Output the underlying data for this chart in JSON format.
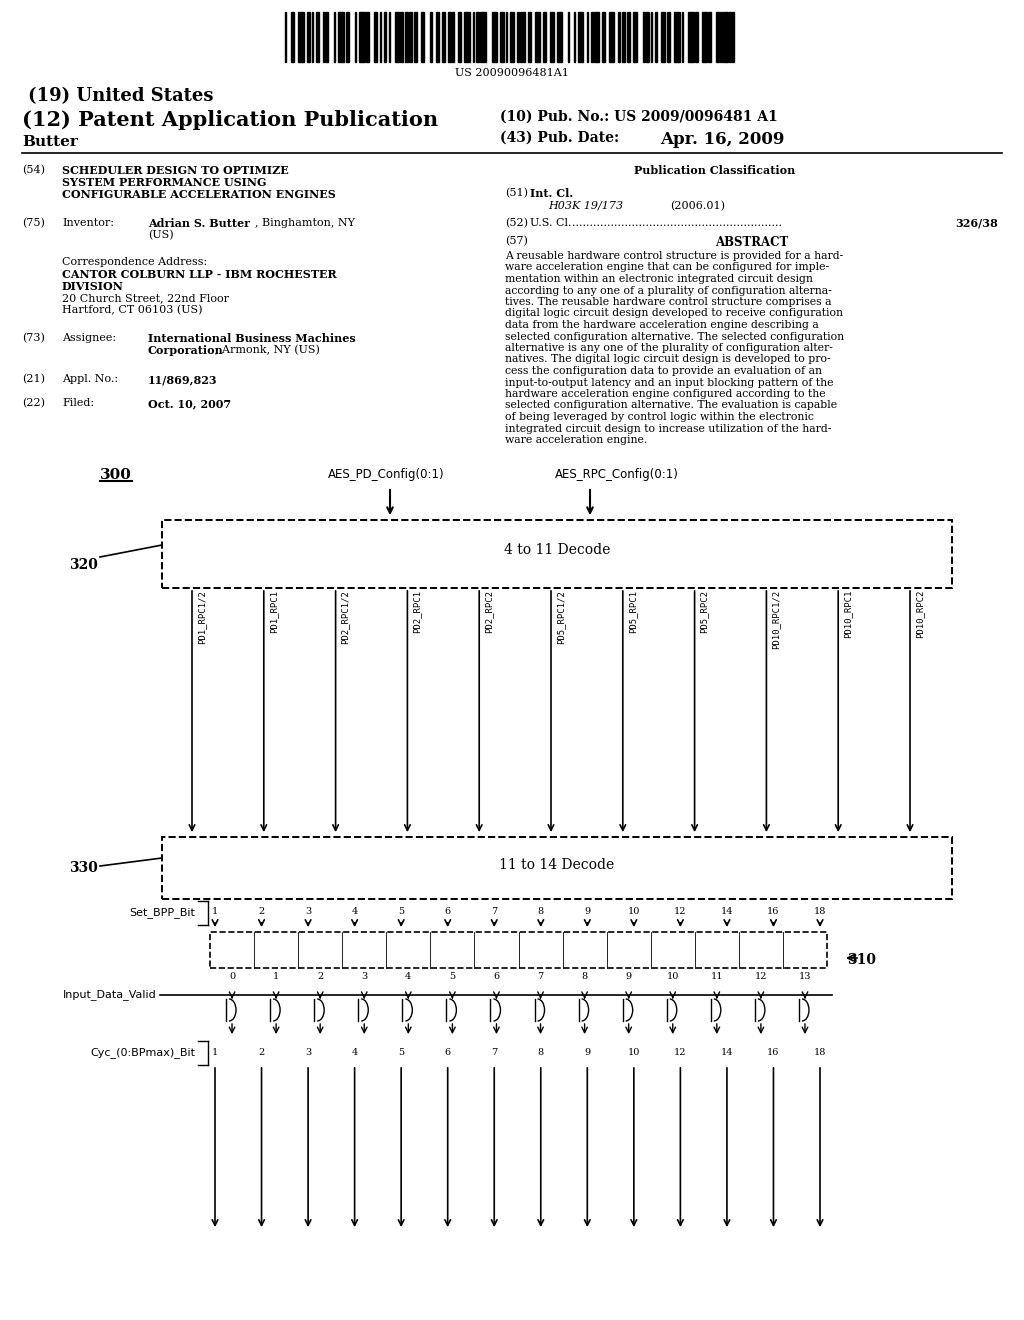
{
  "bg_color": "#ffffff",
  "patent_number": "US 20090096481A1",
  "title_19": "(19) United States",
  "title_12": "(12) Patent Application Publication",
  "pub_no_label": "(10) Pub. No.: US 2009/0096481 A1",
  "pub_date_label": "(43) Pub. Date:",
  "pub_date_value": "Apr. 16, 2009",
  "inventor_name": "Butter",
  "section54_num": "(54)",
  "pub_class_title": "Publication Classification",
  "int_cl_num": "(51)",
  "int_cl_label": "Int. Cl.",
  "int_cl_value": "H03K 19/173",
  "int_cl_year": "(2006.01)",
  "us_cl_num": "(52)",
  "us_cl_label": "U.S. Cl.",
  "us_cl_value": "326/38",
  "abstract_num": "(57)",
  "abstract_title": "ABSTRACT",
  "abstract_lines": [
    "A reusable hardware control structure is provided for a hard-",
    "ware acceleration engine that can be configured for imple-",
    "mentation within an electronic integrated circuit design",
    "according to any one of a plurality of configuration alterna-",
    "tives. The reusable hardware control structure comprises a",
    "digital logic circuit design developed to receive configuration",
    "data from the hardware acceleration engine describing a",
    "selected configuration alternative. The selected configuration",
    "alternative is any one of the plurality of configuration alter-",
    "natives. The digital logic circuit design is developed to pro-",
    "cess the configuration data to provide an evaluation of an",
    "input-to-output latency and an input blocking pattern of the",
    "hardware acceleration engine configured according to the",
    "selected configuration alternative. The evaluation is capable",
    "of being leveraged by control logic within the electronic",
    "integrated circuit design to increase utilization of the hard-",
    "ware acceleration engine."
  ],
  "inventor_num": "(75)",
  "inventor_label": "Inventor:",
  "assignee_num": "(73)",
  "assignee_label": "Assignee:",
  "appl_num": "(21)",
  "appl_label": "Appl. No.:",
  "appl_value": "11/869,823",
  "filed_num": "(22)",
  "filed_label": "Filed:",
  "filed_value": "Oct. 10, 2007",
  "fig_label": "300",
  "aes_pd_label": "AES_PD_Config(0:1)",
  "aes_rpc_label": "AES_RPC_Config(0:1)",
  "decode1_label": "4 to 11 Decode",
  "decode1_ref": "320",
  "decode2_label": "11 to 14 Decode",
  "decode2_ref": "330",
  "bus_labels_decode1": [
    "PD1_RPC1/2",
    "PD1_RPC1",
    "PD2_RPC1/2",
    "PD2_RPC1",
    "PD2_RPC2",
    "PD5_RPC1/2",
    "PD5_RPC1",
    "PD5_RPC2",
    "PD10_RPC1/2",
    "PD10_RPC1",
    "PD10_RPC2"
  ],
  "set_bpp_label": "Set_BPP_Bit",
  "set_bpp_values": [
    "1",
    "2",
    "3",
    "4",
    "5",
    "6",
    "7",
    "8",
    "9",
    "10",
    "12",
    "14",
    "16",
    "18"
  ],
  "input_data_label": "Input_Data_Valid",
  "input_data_values": [
    "0",
    "1",
    "2",
    "3",
    "4",
    "5",
    "6",
    "7",
    "8",
    "9",
    "10",
    "11",
    "12",
    "13"
  ],
  "cyc_label": "Cyc_(0:BPmax)_Bit",
  "cyc_values": [
    "1",
    "2",
    "3",
    "4",
    "5",
    "6",
    "7",
    "8",
    "9",
    "10",
    "12",
    "14",
    "16",
    "18"
  ],
  "block310_ref": "310"
}
